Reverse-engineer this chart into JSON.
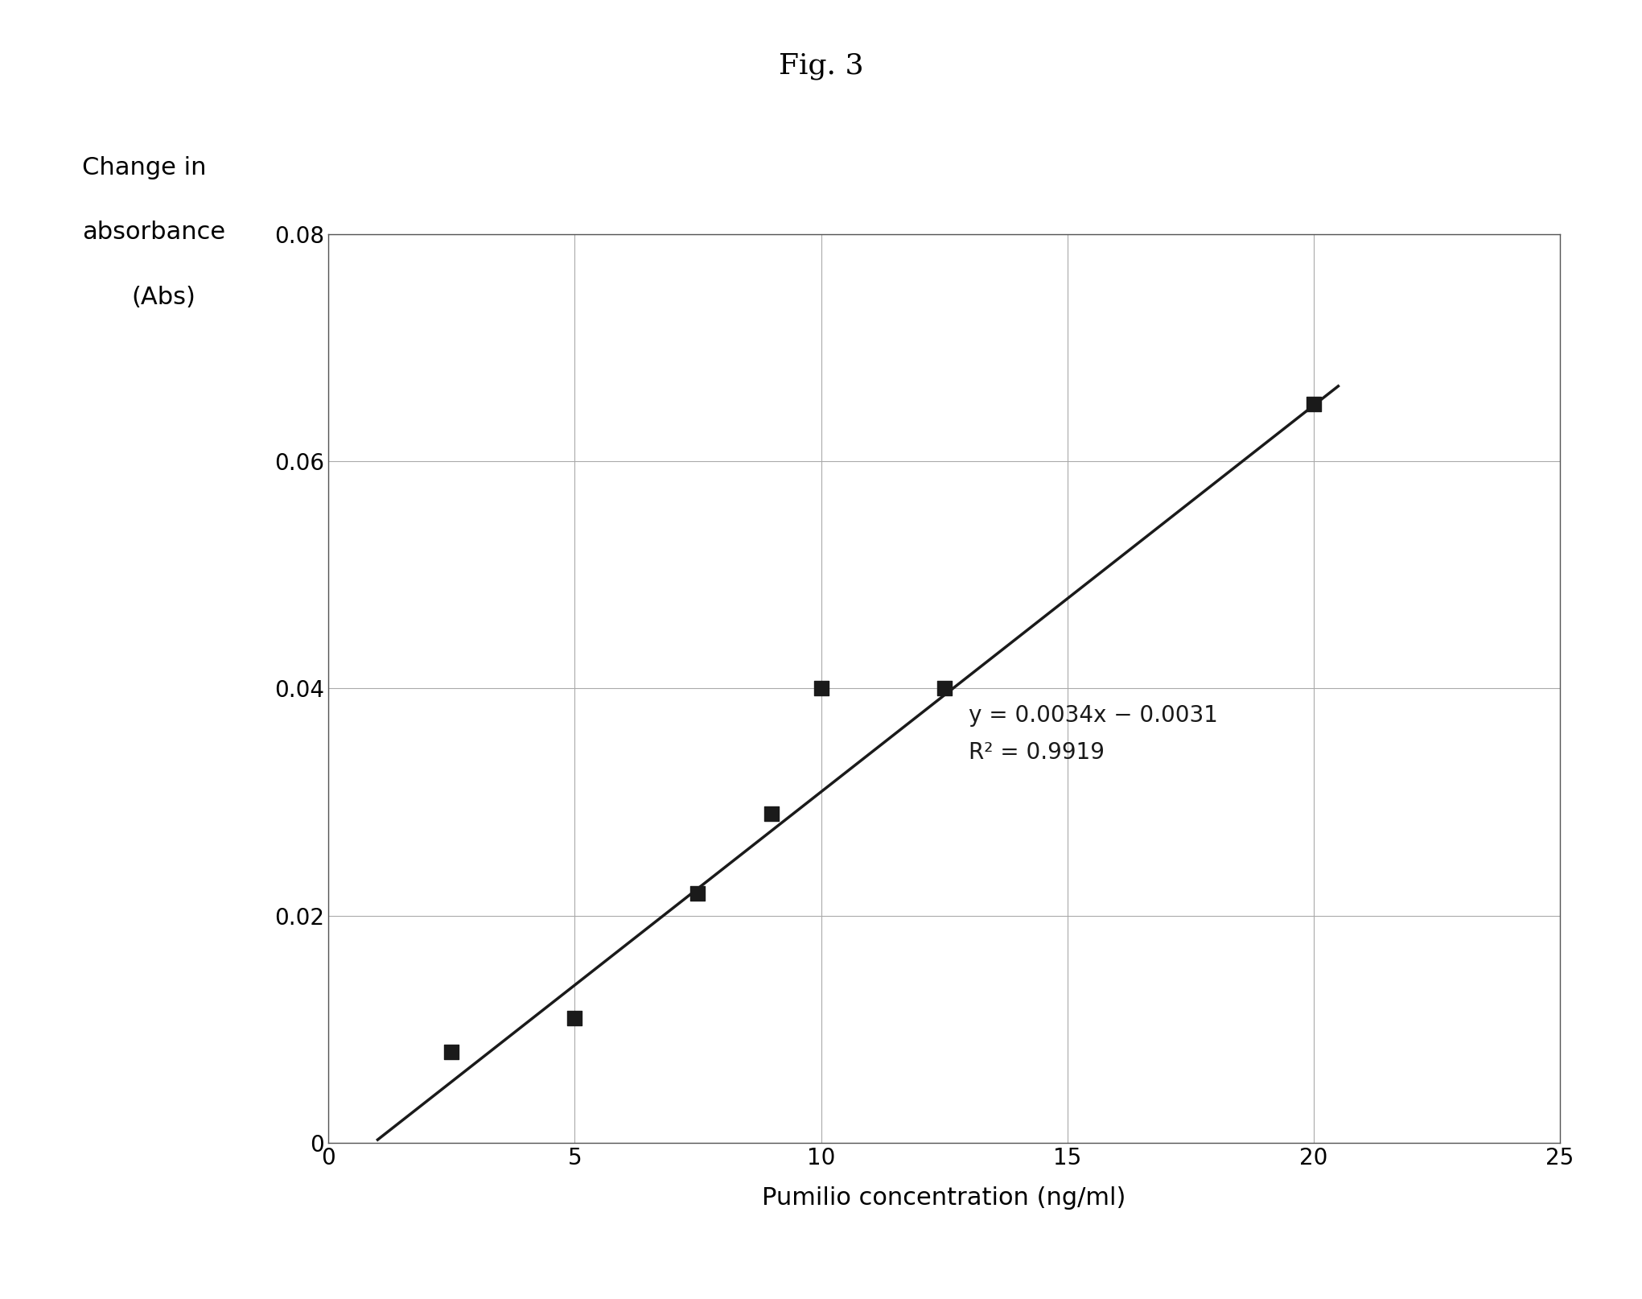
{
  "title": "Fig. 3",
  "xlabel": "Pumilio concentration (ng/ml)",
  "ylabel_line1": "Change in",
  "ylabel_line2": "absorbance",
  "ylabel_line3": "(Abs)",
  "x_data": [
    2.5,
    5.0,
    7.5,
    9.0,
    10.0,
    12.5,
    20.0
  ],
  "y_data": [
    0.008,
    0.011,
    0.022,
    0.029,
    0.04,
    0.04,
    0.065
  ],
  "xlim": [
    0,
    25
  ],
  "ylim": [
    0,
    0.08
  ],
  "xticks": [
    0,
    5,
    10,
    15,
    20,
    25
  ],
  "yticks": [
    0,
    0.02,
    0.04,
    0.06,
    0.08
  ],
  "equation": "y = 0.0034x − 0.0031",
  "r_squared": "R² = 0.9919",
  "line_slope": 0.0034,
  "line_intercept": -0.0031,
  "line_x_start": 1.0,
  "line_x_end": 20.5,
  "marker_color": "#1a1a1a",
  "line_color": "#1a1a1a",
  "grid_color": "#aaaaaa",
  "background_color": "#ffffff",
  "title_fontsize": 26,
  "label_fontsize": 22,
  "tick_fontsize": 20,
  "annotation_fontsize": 20,
  "ylabel_fontsize": 22
}
